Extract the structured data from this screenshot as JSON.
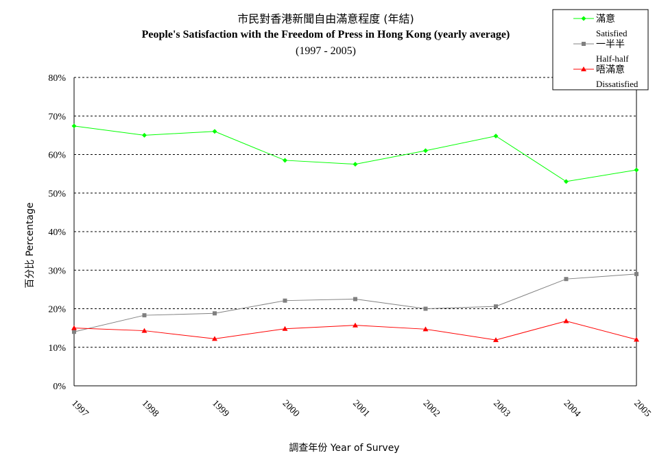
{
  "chart_data": {
    "type": "line",
    "title": "市民對香港新聞自由滿意程度 (年結)",
    "subtitle": "People's Satisfaction with the Freedom of Press in Hong Kong (yearly average)",
    "subtitle2": "(1997 - 2005)",
    "ylabel": "百分比 Percentage",
    "xlabel": "調查年份 Year of Survey",
    "categories": [
      "1997",
      "1998",
      "1999",
      "2000",
      "2001",
      "2002",
      "2003",
      "2004",
      "2005"
    ],
    "y_ticks": [
      "0%",
      "10%",
      "20%",
      "30%",
      "40%",
      "50%",
      "60%",
      "70%",
      "80%"
    ],
    "ylim": [
      0,
      80
    ],
    "grid": "horizontal dashed",
    "legend_position": "top-right",
    "series": [
      {
        "name": "滿意",
        "name_en": "Satisfied",
        "color": "#00ff00",
        "marker": "diamond",
        "values": [
          67.4,
          65.0,
          66.0,
          58.5,
          57.5,
          61.0,
          64.8,
          53.0,
          56.0
        ]
      },
      {
        "name": "一半半",
        "name_en": "Half-half",
        "color": "#808080",
        "marker": "square",
        "values": [
          14.0,
          18.3,
          18.8,
          22.1,
          22.5,
          20.0,
          20.6,
          27.7,
          29.0
        ]
      },
      {
        "name": "唔滿意",
        "name_en": "Dissatisfied",
        "color": "#ff0000",
        "marker": "triangle",
        "values": [
          15.0,
          14.3,
          12.2,
          14.8,
          15.7,
          14.7,
          11.9,
          16.8,
          12.0
        ]
      }
    ]
  }
}
